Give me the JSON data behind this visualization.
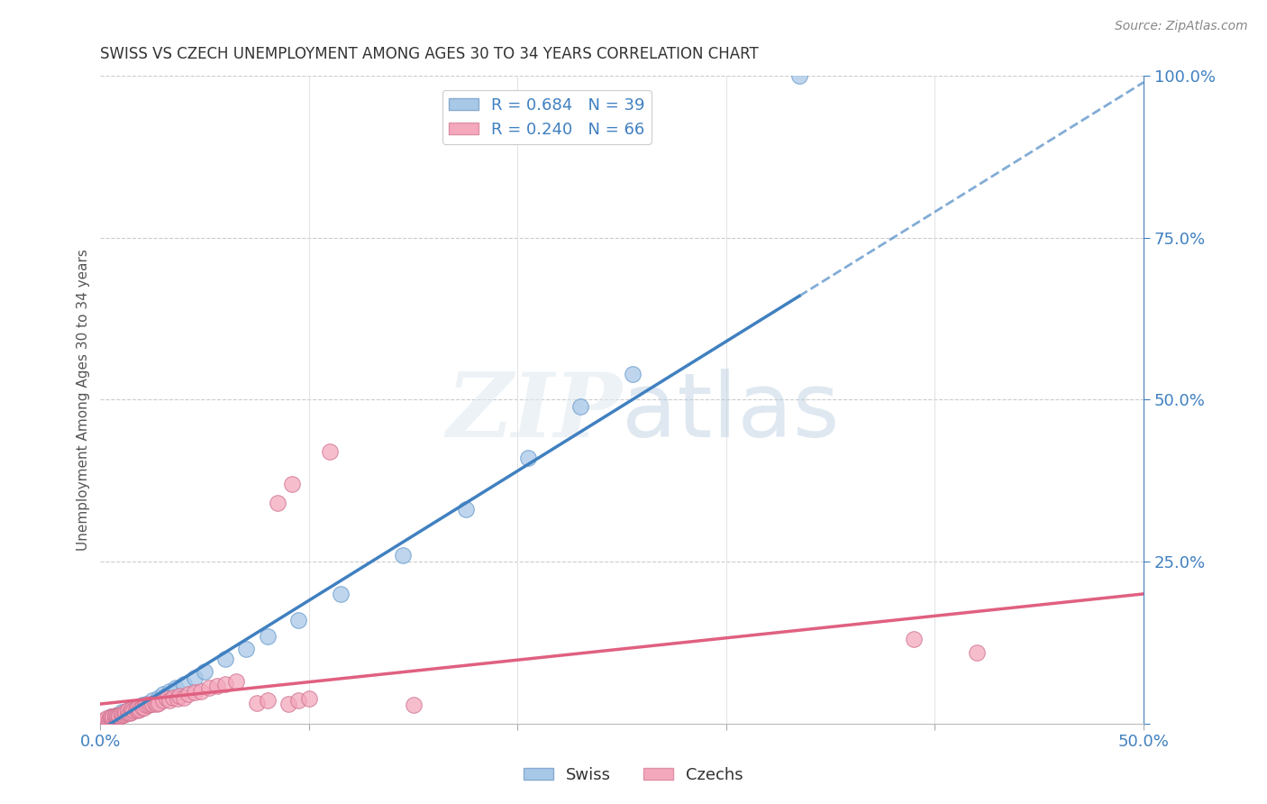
{
  "title": "SWISS VS CZECH UNEMPLOYMENT AMONG AGES 30 TO 34 YEARS CORRELATION CHART",
  "source": "Source: ZipAtlas.com",
  "ylabel": "Unemployment Among Ages 30 to 34 years",
  "xlim": [
    0.0,
    0.5
  ],
  "ylim": [
    0.0,
    1.0
  ],
  "xticks": [
    0.0,
    0.1,
    0.2,
    0.3,
    0.4,
    0.5
  ],
  "yticks": [
    0.0,
    0.25,
    0.5,
    0.75,
    1.0
  ],
  "swiss_color": "#a8c8e8",
  "czech_color": "#f4a8bc",
  "swiss_line_color": "#4080c0",
  "czech_line_color": "#e06080",
  "swiss_R": 0.684,
  "swiss_N": 39,
  "czech_R": 0.24,
  "czech_N": 66,
  "background_color": "#ffffff",
  "grid_color": "#cccccc",
  "legend_text_color": "#4080c0",
  "swiss_scatter": [
    [
      0.002,
      0.005
    ],
    [
      0.003,
      0.005
    ],
    [
      0.004,
      0.005
    ],
    [
      0.004,
      0.008
    ],
    [
      0.005,
      0.006
    ],
    [
      0.005,
      0.01
    ],
    [
      0.006,
      0.008
    ],
    [
      0.007,
      0.01
    ],
    [
      0.007,
      0.012
    ],
    [
      0.008,
      0.01
    ],
    [
      0.009,
      0.012
    ],
    [
      0.01,
      0.015
    ],
    [
      0.01,
      0.018
    ],
    [
      0.012,
      0.016
    ],
    [
      0.013,
      0.02
    ],
    [
      0.014,
      0.018
    ],
    [
      0.015,
      0.022
    ],
    [
      0.018,
      0.025
    ],
    [
      0.02,
      0.028
    ],
    [
      0.022,
      0.03
    ],
    [
      0.025,
      0.035
    ],
    [
      0.028,
      0.04
    ],
    [
      0.03,
      0.045
    ],
    [
      0.033,
      0.05
    ],
    [
      0.036,
      0.055
    ],
    [
      0.04,
      0.06
    ],
    [
      0.045,
      0.07
    ],
    [
      0.05,
      0.08
    ],
    [
      0.06,
      0.1
    ],
    [
      0.07,
      0.115
    ],
    [
      0.08,
      0.135
    ],
    [
      0.095,
      0.16
    ],
    [
      0.115,
      0.2
    ],
    [
      0.145,
      0.26
    ],
    [
      0.175,
      0.33
    ],
    [
      0.205,
      0.41
    ],
    [
      0.23,
      0.49
    ],
    [
      0.255,
      0.54
    ],
    [
      0.335,
      1.0
    ]
  ],
  "czech_scatter": [
    [
      0.002,
      0.005
    ],
    [
      0.003,
      0.006
    ],
    [
      0.003,
      0.008
    ],
    [
      0.004,
      0.005
    ],
    [
      0.004,
      0.007
    ],
    [
      0.005,
      0.006
    ],
    [
      0.005,
      0.008
    ],
    [
      0.005,
      0.01
    ],
    [
      0.006,
      0.008
    ],
    [
      0.006,
      0.01
    ],
    [
      0.007,
      0.008
    ],
    [
      0.007,
      0.01
    ],
    [
      0.007,
      0.012
    ],
    [
      0.008,
      0.01
    ],
    [
      0.008,
      0.012
    ],
    [
      0.009,
      0.01
    ],
    [
      0.009,
      0.012
    ],
    [
      0.01,
      0.012
    ],
    [
      0.01,
      0.015
    ],
    [
      0.011,
      0.014
    ],
    [
      0.012,
      0.015
    ],
    [
      0.012,
      0.018
    ],
    [
      0.013,
      0.016
    ],
    [
      0.013,
      0.02
    ],
    [
      0.014,
      0.016
    ],
    [
      0.015,
      0.018
    ],
    [
      0.015,
      0.022
    ],
    [
      0.016,
      0.02
    ],
    [
      0.017,
      0.022
    ],
    [
      0.018,
      0.02
    ],
    [
      0.018,
      0.025
    ],
    [
      0.019,
      0.022
    ],
    [
      0.02,
      0.025
    ],
    [
      0.021,
      0.025
    ],
    [
      0.022,
      0.028
    ],
    [
      0.023,
      0.028
    ],
    [
      0.024,
      0.03
    ],
    [
      0.025,
      0.03
    ],
    [
      0.026,
      0.032
    ],
    [
      0.027,
      0.03
    ],
    [
      0.028,
      0.032
    ],
    [
      0.03,
      0.035
    ],
    [
      0.032,
      0.038
    ],
    [
      0.033,
      0.035
    ],
    [
      0.035,
      0.04
    ],
    [
      0.037,
      0.038
    ],
    [
      0.038,
      0.042
    ],
    [
      0.04,
      0.04
    ],
    [
      0.042,
      0.045
    ],
    [
      0.045,
      0.048
    ],
    [
      0.048,
      0.05
    ],
    [
      0.052,
      0.055
    ],
    [
      0.056,
      0.058
    ],
    [
      0.06,
      0.06
    ],
    [
      0.065,
      0.065
    ],
    [
      0.075,
      0.032
    ],
    [
      0.08,
      0.035
    ],
    [
      0.09,
      0.03
    ],
    [
      0.095,
      0.035
    ],
    [
      0.1,
      0.038
    ],
    [
      0.15,
      0.028
    ],
    [
      0.085,
      0.34
    ],
    [
      0.092,
      0.37
    ],
    [
      0.11,
      0.42
    ],
    [
      0.39,
      0.13
    ],
    [
      0.42,
      0.11
    ]
  ]
}
